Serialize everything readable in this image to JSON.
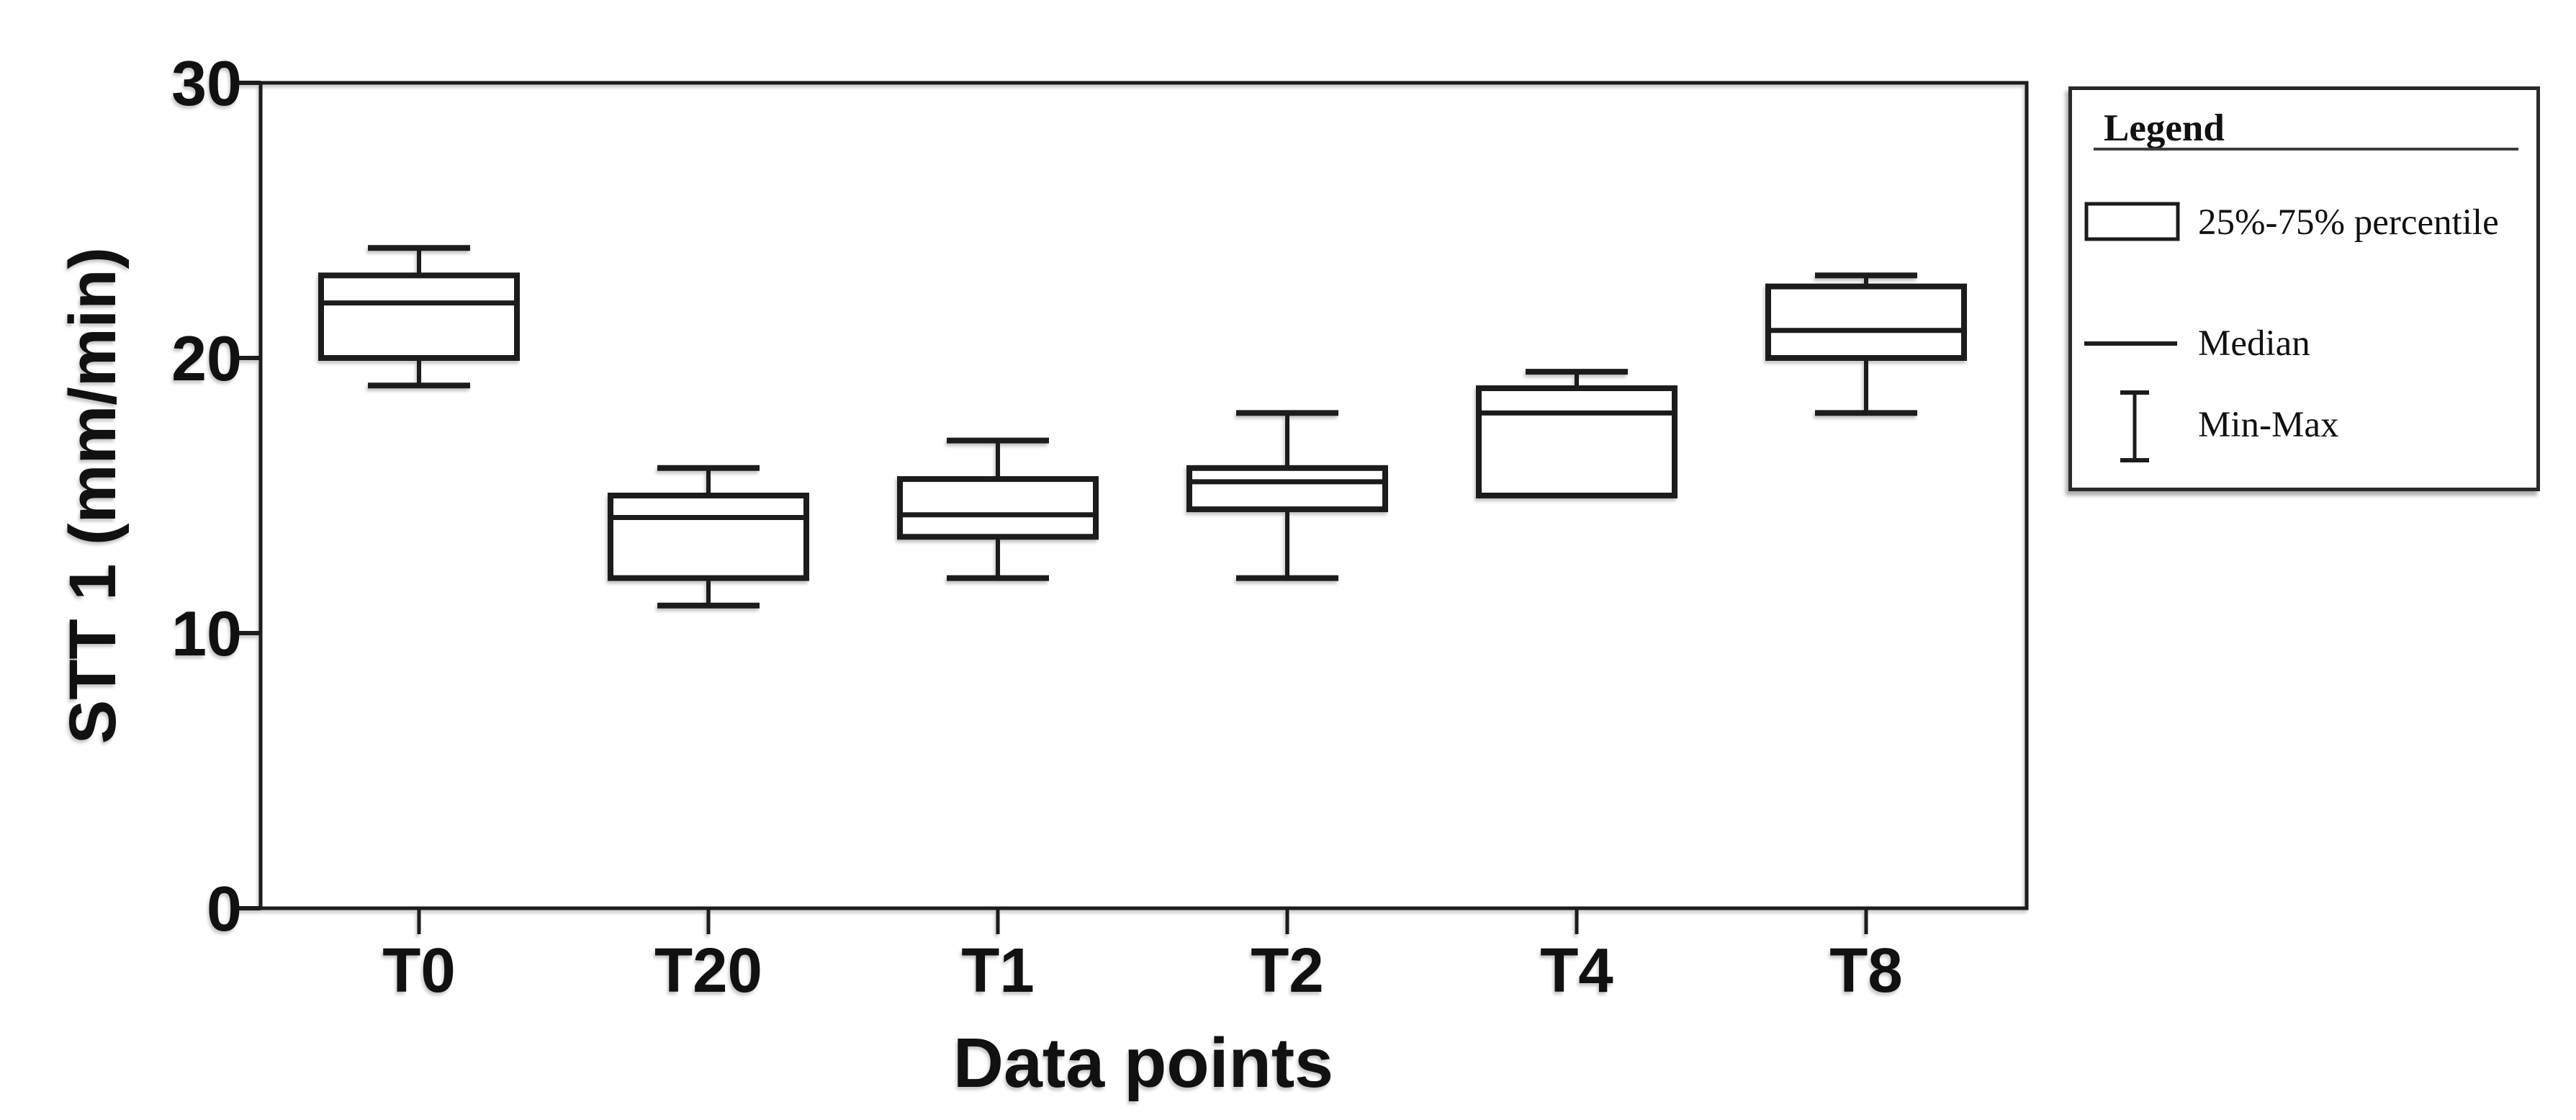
{
  "figure": {
    "background": "#ffffff",
    "ink": "#1c1c1c",
    "text_color": "#111111"
  },
  "chart_data": {
    "type": "box",
    "title": "",
    "xlabel": "Data points",
    "ylabel": "STT 1 (mm/min)",
    "categories": [
      "T0",
      "T20",
      "T1",
      "T2",
      "T4",
      "T8"
    ],
    "y_ticks": [
      0,
      10,
      20,
      30
    ],
    "ylim": [
      0,
      30
    ],
    "grid": false,
    "legend_position": "outside-top-right",
    "series": [
      {
        "category": "T0",
        "min": 19,
        "q1": 20,
        "median": 22,
        "q3": 23,
        "max": 24
      },
      {
        "category": "T20",
        "min": 11,
        "q1": 12,
        "median": 14.2,
        "q3": 15,
        "max": 16
      },
      {
        "category": "T1",
        "min": 12,
        "q1": 13.5,
        "median": 14.3,
        "q3": 15.6,
        "max": 17
      },
      {
        "category": "T2",
        "min": 12,
        "q1": 14.5,
        "median": 15.5,
        "q3": 16,
        "max": 18
      },
      {
        "category": "T4",
        "min": 15,
        "q1": 15,
        "median": 18,
        "q3": 18.9,
        "max": 19.5
      },
      {
        "category": "T8",
        "min": 18,
        "q1": 20,
        "median": 21,
        "q3": 22.6,
        "max": 23
      }
    ]
  },
  "legend": {
    "title": "Legend",
    "items": [
      {
        "icon": "percentile-box-icon",
        "label": "25%-75% percentile"
      },
      {
        "icon": "median-line-icon",
        "label": "Median"
      },
      {
        "icon": "min-max-whisker-icon",
        "label": "Min-Max"
      }
    ]
  }
}
